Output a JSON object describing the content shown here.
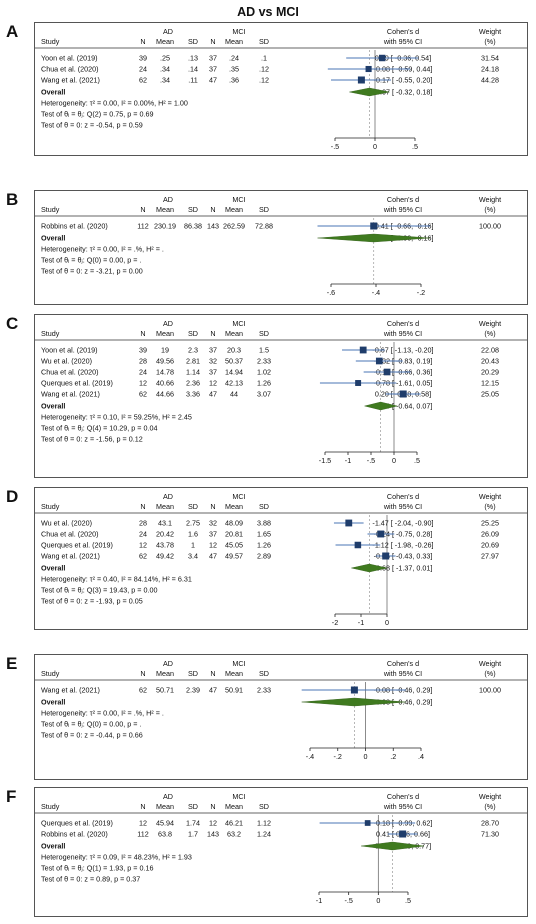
{
  "title": "AD vs MCI",
  "colors": {
    "box": "#1f3d6b",
    "ci": "#4a74b4",
    "diamond": "#3f7a1f",
    "zero": "#6e6e6e",
    "ref": "#888888"
  },
  "headers": {
    "group1": "AD",
    "group2": "MCI",
    "study": "Study",
    "n": "N",
    "mean": "Mean",
    "sd": "SD",
    "effect_line1": "Cohen's d",
    "effect_line2": "with 95% CI",
    "weight_line1": "Weight",
    "weight_line2": "(%)"
  },
  "overall_label": "Overall",
  "chart_data": [
    {
      "type": "forest",
      "panel": "A",
      "xlim": [
        -0.5,
        0.5
      ],
      "ticks": [
        -0.5,
        0,
        0.5
      ],
      "tick_labels": [
        "-.5",
        "0",
        ".5"
      ],
      "studies": [
        {
          "name": "Yoon et al. (2019)",
          "ad_n": "39",
          "ad_mean": ".25",
          "ad_sd": ".13",
          "mci_n": "37",
          "mci_mean": ".24",
          "mci_sd": ".1",
          "d": 0.09,
          "lo": -0.36,
          "hi": 0.54,
          "ci_text": "0.09 [ -0.36, 0.54]",
          "weight": "31.54"
        },
        {
          "name": "Chua et al. (2020)",
          "ad_n": "24",
          "ad_mean": ".34",
          "ad_sd": ".14",
          "mci_n": "37",
          "mci_mean": ".35",
          "mci_sd": ".12",
          "d": -0.08,
          "lo": -0.59,
          "hi": 0.44,
          "ci_text": "-0.08 [ -0.59, 0.44]",
          "weight": "24.18"
        },
        {
          "name": "Wang et al. (2021)",
          "ad_n": "62",
          "ad_mean": ".34",
          "ad_sd": ".11",
          "mci_n": "47",
          "mci_mean": ".36",
          "mci_sd": ".12",
          "d": -0.17,
          "lo": -0.55,
          "hi": 0.2,
          "ci_text": "-0.17 [ -0.55, 0.20]",
          "weight": "44.28"
        }
      ],
      "overall": {
        "d": -0.07,
        "lo": -0.32,
        "hi": 0.18,
        "ci_text": "-0.07 [ -0.32, 0.18]"
      },
      "stats": [
        "Heterogeneity: τ² = 0.00, I² = 0.00%, H² = 1.00",
        "Test of θᵢ = θⱼ: Q(2) = 0.75, p = 0.69",
        "Test of θ = 0: z = -0.54, p = 0.59"
      ]
    },
    {
      "type": "forest",
      "panel": "B",
      "xlim": [
        -0.6,
        -0.2
      ],
      "ticks": [
        -0.6,
        -0.4,
        -0.2
      ],
      "tick_labels": [
        "-.6",
        "-.4",
        "-.2"
      ],
      "studies": [
        {
          "name": "Robbins et al. (2020)",
          "ad_n": "112",
          "ad_mean": "230.19",
          "ad_sd": "86.38",
          "mci_n": "143",
          "mci_mean": "262.59",
          "mci_sd": "72.88",
          "d": -0.41,
          "lo": -0.66,
          "hi": -0.16,
          "ci_text": "-0.41 [ -0.66, -0.16]",
          "weight": "100.00"
        }
      ],
      "overall": {
        "d": -0.41,
        "lo": -0.66,
        "hi": -0.16,
        "ci_text": "-0.41 [ -0.66, -0.16]"
      },
      "stats": [
        "Heterogeneity: τ² = 0.00, I² = .%, H² = .",
        "Test of θᵢ = θⱼ: Q(0) = 0.00, p = .",
        "Test of θ = 0: z = -3.21, p = 0.00"
      ]
    },
    {
      "type": "forest",
      "panel": "C",
      "xlim": [
        -1.5,
        0.5
      ],
      "ticks": [
        -1.5,
        -1,
        -0.5,
        0,
        0.5
      ],
      "tick_labels": [
        "-1.5",
        "-1",
        "-.5",
        "0",
        ".5"
      ],
      "studies": [
        {
          "name": "Yoon et al. (2019)",
          "ad_n": "39",
          "ad_mean": "19",
          "ad_sd": "2.3",
          "mci_n": "37",
          "mci_mean": "20.3",
          "mci_sd": "1.5",
          "d": -0.67,
          "lo": -1.13,
          "hi": -0.2,
          "ci_text": "-0.67 [ -1.13, -0.20]",
          "weight": "22.08"
        },
        {
          "name": "Wu et al. (2020)",
          "ad_n": "28",
          "ad_mean": "49.56",
          "ad_sd": "2.81",
          "mci_n": "32",
          "mci_mean": "50.37",
          "mci_sd": "2.33",
          "d": -0.32,
          "lo": -0.83,
          "hi": 0.19,
          "ci_text": "-0.32 [ -0.83, 0.19]",
          "weight": "20.43"
        },
        {
          "name": "Chua et al. (2020)",
          "ad_n": "24",
          "ad_mean": "14.78",
          "ad_sd": "1.14",
          "mci_n": "37",
          "mci_mean": "14.94",
          "mci_sd": "1.02",
          "d": -0.15,
          "lo": -0.66,
          "hi": 0.36,
          "ci_text": "-0.15 [ -0.66, 0.36]",
          "weight": "20.29"
        },
        {
          "name": "Querques et al. (2019)",
          "ad_n": "12",
          "ad_mean": "40.66",
          "ad_sd": "2.36",
          "mci_n": "12",
          "mci_mean": "42.13",
          "mci_sd": "1.26",
          "d": -0.78,
          "lo": -1.61,
          "hi": 0.05,
          "ci_text": "-0.78 [ -1.61, 0.05]",
          "weight": "12.15"
        },
        {
          "name": "Wang et al. (2021)",
          "ad_n": "62",
          "ad_mean": "44.66",
          "ad_sd": "3.36",
          "mci_n": "47",
          "mci_mean": "44",
          "mci_sd": "3.07",
          "d": 0.2,
          "lo": -0.18,
          "hi": 0.58,
          "ci_text": "0.20 [ -0.18, 0.58]",
          "weight": "25.05"
        }
      ],
      "overall": {
        "d": -0.29,
        "lo": -0.64,
        "hi": 0.07,
        "ci_text": "-0.29 [ -0.64, 0.07]"
      },
      "stats": [
        "Heterogeneity: τ² = 0.10, I² = 59.25%, H² = 2.45",
        "Test of θᵢ = θⱼ: Q(4) = 10.29, p = 0.04",
        "Test of θ = 0: z = -1.56, p = 0.12"
      ]
    },
    {
      "type": "forest",
      "panel": "D",
      "xlim": [
        -2,
        0
      ],
      "ticks": [
        -2,
        -1,
        0
      ],
      "tick_labels": [
        "-2",
        "-1",
        "0"
      ],
      "studies": [
        {
          "name": "Wu et al. (2020)",
          "ad_n": "28",
          "ad_mean": "43.1",
          "ad_sd": "2.75",
          "mci_n": "32",
          "mci_mean": "48.09",
          "mci_sd": "3.88",
          "d": -1.47,
          "lo": -2.04,
          "hi": -0.9,
          "ci_text": "-1.47 [ -2.04, -0.90]",
          "weight": "25.25"
        },
        {
          "name": "Chua et al. (2020)",
          "ad_n": "24",
          "ad_mean": "20.42",
          "ad_sd": "1.6",
          "mci_n": "37",
          "mci_mean": "20.81",
          "mci_sd": "1.65",
          "d": -0.24,
          "lo": -0.75,
          "hi": 0.28,
          "ci_text": "-0.24 [ -0.75, 0.28]",
          "weight": "26.09"
        },
        {
          "name": "Querques et al. (2019)",
          "ad_n": "12",
          "ad_mean": "43.78",
          "ad_sd": "1",
          "mci_n": "12",
          "mci_mean": "45.05",
          "mci_sd": "1.26",
          "d": -1.12,
          "lo": -1.98,
          "hi": -0.26,
          "ci_text": "-1.12 [ -1.98, -0.26]",
          "weight": "20.69"
        },
        {
          "name": "Wang et al. (2021)",
          "ad_n": "62",
          "ad_mean": "49.42",
          "ad_sd": "3.4",
          "mci_n": "47",
          "mci_mean": "49.57",
          "mci_sd": "2.89",
          "d": -0.05,
          "lo": -0.43,
          "hi": 0.33,
          "ci_text": "-0.05 [ -0.43, 0.33]",
          "weight": "27.97"
        }
      ],
      "overall": {
        "d": -0.68,
        "lo": -1.37,
        "hi": 0.01,
        "ci_text": "-0.68 [ -1.37, 0.01]"
      },
      "stats": [
        "Heterogeneity: τ² = 0.40, I² = 84.14%, H² = 6.31",
        "Test of θᵢ = θⱼ: Q(3) = 19.43, p = 0.00",
        "Test of θ = 0: z = -1.93, p = 0.05"
      ]
    },
    {
      "type": "forest",
      "panel": "E",
      "xlim": [
        -0.4,
        0.4
      ],
      "ticks": [
        -0.4,
        -0.2,
        0,
        0.2,
        0.4
      ],
      "tick_labels": [
        "-.4",
        "-.2",
        "0",
        ".2",
        ".4"
      ],
      "studies": [
        {
          "name": "Wang et al. (2021)",
          "ad_n": "62",
          "ad_mean": "50.71",
          "ad_sd": "2.39",
          "mci_n": "47",
          "mci_mean": "50.91",
          "mci_sd": "2.33",
          "d": -0.08,
          "lo": -0.46,
          "hi": 0.29,
          "ci_text": "-0.08 [ -0.46, 0.29]",
          "weight": "100.00"
        }
      ],
      "overall": {
        "d": -0.08,
        "lo": -0.46,
        "hi": 0.29,
        "ci_text": "-0.08 [ -0.46, 0.29]"
      },
      "stats": [
        "Heterogeneity: τ² = 0.00, I² = .%, H² = .",
        "Test of θᵢ = θⱼ: Q(0) = 0.00, p = .",
        "Test of θ = 0: z = -0.44, p = 0.66"
      ]
    },
    {
      "type": "forest",
      "panel": "F",
      "xlim": [
        -1,
        0.5
      ],
      "ticks": [
        -1,
        -0.5,
        0,
        0.5
      ],
      "tick_labels": [
        "-1",
        "-.5",
        "0",
        ".5"
      ],
      "studies": [
        {
          "name": "Querques et al. (2019)",
          "ad_n": "12",
          "ad_mean": "45.94",
          "ad_sd": "1.74",
          "mci_n": "12",
          "mci_mean": "46.21",
          "mci_sd": "1.12",
          "d": -0.18,
          "lo": -0.99,
          "hi": 0.62,
          "ci_text": "-0.18 [ -0.99, 0.62]",
          "weight": "28.70"
        },
        {
          "name": "Robbins et al. (2020)",
          "ad_n": "112",
          "ad_mean": "63.8",
          "ad_sd": "1.7",
          "mci_n": "143",
          "mci_mean": "63.2",
          "mci_sd": "1.24",
          "d": 0.41,
          "lo": 0.16,
          "hi": 0.66,
          "ci_text": "0.41 [ 0.16, 0.66]",
          "weight": "71.30"
        }
      ],
      "overall": {
        "d": 0.24,
        "lo": -0.29,
        "hi": 0.77,
        "ci_text": "0.24 [ -0.29, 0.77]"
      },
      "stats": [
        "Heterogeneity: τ² = 0.09, I² = 48.23%, H² = 1.93",
        "Test of θᵢ = θⱼ: Q(1) = 1.93, p = 0.16",
        "Test of θ = 0: z = 0.89, p = 0.37"
      ]
    }
  ]
}
